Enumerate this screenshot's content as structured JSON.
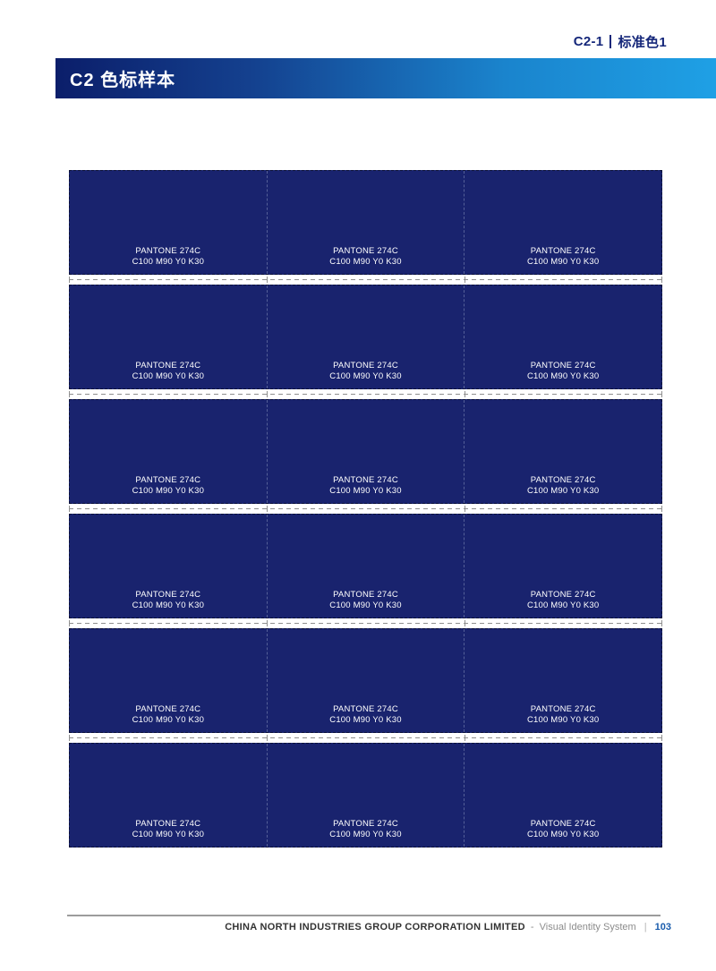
{
  "colors": {
    "swatch_blue": "#19236E",
    "swatch_border": "#0A1038",
    "grad_0": "#0B1E6A",
    "grad_1": "#14418F",
    "grad_2": "#1A84CD",
    "grad_3": "#1FA0E5",
    "header_navy": "#15277A",
    "title_text": "#FFFFFF",
    "cut_gray": "#909090",
    "rule_gray": "#9C9C9C",
    "footer_dark": "#333333",
    "footer_gray": "#8C8C8C",
    "page_number_blue": "#1A5CAC"
  },
  "header": {
    "section_code": "C2-1",
    "section_title": "标准色1"
  },
  "title_bar": {
    "title": "C2 色标样本"
  },
  "grid": {
    "row_count": 6,
    "column_count": 3,
    "rows": [
      {
        "cells": [
          {
            "pantone": "PANTONE 274C",
            "cmyk": "C100 M90 Y0 K30"
          },
          {
            "pantone": "PANTONE 274C",
            "cmyk": "C100 M90 Y0 K30"
          },
          {
            "pantone": "PANTONE 274C",
            "cmyk": "C100 M90 Y0 K30"
          }
        ]
      },
      {
        "cells": [
          {
            "pantone": "PANTONE 274C",
            "cmyk": "C100 M90 Y0 K30"
          },
          {
            "pantone": "PANTONE 274C",
            "cmyk": "C100 M90 Y0 K30"
          },
          {
            "pantone": "PANTONE 274C",
            "cmyk": "C100 M90 Y0 K30"
          }
        ]
      },
      {
        "cells": [
          {
            "pantone": "PANTONE 274C",
            "cmyk": "C100 M90 Y0 K30"
          },
          {
            "pantone": "PANTONE 274C",
            "cmyk": "C100 M90 Y0 K30"
          },
          {
            "pantone": "PANTONE 274C",
            "cmyk": "C100 M90 Y0 K30"
          }
        ]
      },
      {
        "cells": [
          {
            "pantone": "PANTONE 274C",
            "cmyk": "C100 M90 Y0 K30"
          },
          {
            "pantone": "PANTONE 274C",
            "cmyk": "C100 M90 Y0 K30"
          },
          {
            "pantone": "PANTONE 274C",
            "cmyk": "C100 M90 Y0 K30"
          }
        ]
      },
      {
        "cells": [
          {
            "pantone": "PANTONE 274C",
            "cmyk": "C100 M90 Y0 K30"
          },
          {
            "pantone": "PANTONE 274C",
            "cmyk": "C100 M90 Y0 K30"
          },
          {
            "pantone": "PANTONE 274C",
            "cmyk": "C100 M90 Y0 K30"
          }
        ]
      },
      {
        "cells": [
          {
            "pantone": "PANTONE 274C",
            "cmyk": "C100 M90 Y0 K30"
          },
          {
            "pantone": "PANTONE 274C",
            "cmyk": "C100 M90 Y0 K30"
          },
          {
            "pantone": "PANTONE 274C",
            "cmyk": "C100 M90 Y0 K30"
          }
        ]
      }
    ]
  },
  "footer": {
    "company": "CHINA NORTH INDUSTRIES GROUP CORPORATION LIMITED",
    "separator": "-",
    "system_name": "Visual Identity System",
    "divider": "|",
    "page_number": "103"
  }
}
